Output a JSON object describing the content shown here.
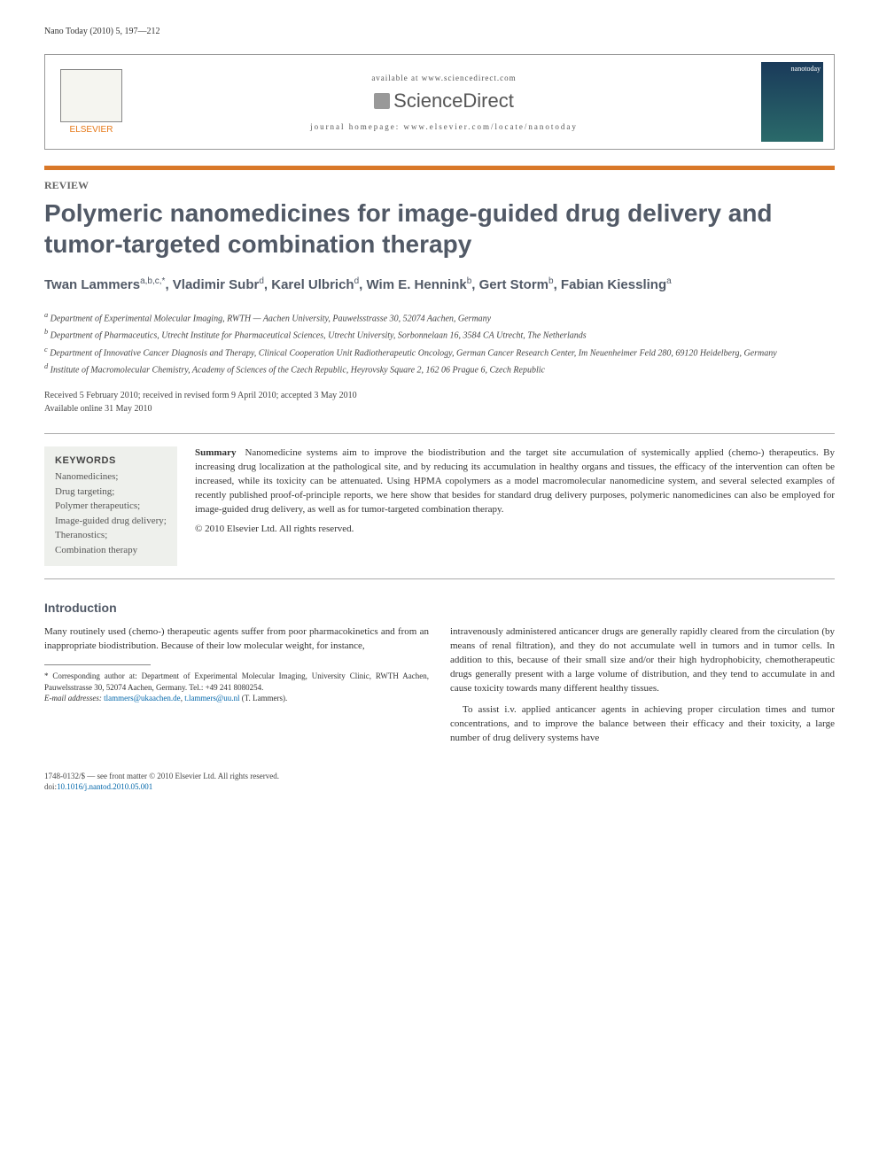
{
  "header": {
    "citation": "Nano Today (2010) 5, 197—212",
    "available_at": "available at www.sciencedirect.com",
    "sciencedirect": "ScienceDirect",
    "homepage_label": "journal homepage:",
    "homepage_url": "www.elsevier.com/locate/nanotoday",
    "elsevier_text": "ELSEVIER",
    "cover_label": "nanotoday"
  },
  "article": {
    "type": "REVIEW",
    "title": "Polymeric nanomedicines for image-guided drug delivery and tumor-targeted combination therapy"
  },
  "authors": [
    {
      "name": "Twan Lammers",
      "sup": "a,b,c,*"
    },
    {
      "name": "Vladimir Subr",
      "sup": "d"
    },
    {
      "name": "Karel Ulbrich",
      "sup": "d"
    },
    {
      "name": "Wim E. Hennink",
      "sup": "b"
    },
    {
      "name": "Gert Storm",
      "sup": "b"
    },
    {
      "name": "Fabian Kiessling",
      "sup": "a"
    }
  ],
  "affiliations": {
    "a": "Department of Experimental Molecular Imaging, RWTH — Aachen University, Pauwelsstrasse 30, 52074 Aachen, Germany",
    "b": "Department of Pharmaceutics, Utrecht Institute for Pharmaceutical Sciences, Utrecht University, Sorbonnelaan 16, 3584 CA Utrecht, The Netherlands",
    "c": "Department of Innovative Cancer Diagnosis and Therapy, Clinical Cooperation Unit Radiotherapeutic Oncology, German Cancer Research Center, Im Neuenheimer Feld 280, 69120 Heidelberg, Germany",
    "d": "Institute of Macromolecular Chemistry, Academy of Sciences of the Czech Republic, Heyrovsky Square 2, 162 06 Prague 6, Czech Republic"
  },
  "dates": {
    "received": "Received 5 February 2010; received in revised form 9 April 2010; accepted 3 May 2010",
    "online": "Available online 31 May 2010"
  },
  "keywords": {
    "label": "KEYWORDS",
    "items": "Nanomedicines;\nDrug targeting;\nPolymer therapeutics;\nImage-guided drug delivery;\nTheranostics;\nCombination therapy"
  },
  "summary": {
    "label": "Summary",
    "text": "Nanomedicine systems aim to improve the biodistribution and the target site accumulation of systemically applied (chemo-) therapeutics. By increasing drug localization at the pathological site, and by reducing its accumulation in healthy organs and tissues, the efficacy of the intervention can often be increased, while its toxicity can be attenuated. Using HPMA copolymers as a model macromolecular nanomedicine system, and several selected examples of recently published proof-of-principle reports, we here show that besides for standard drug delivery purposes, polymeric nanomedicines can also be employed for image-guided drug delivery, as well as for tumor-targeted combination therapy.",
    "copyright": "© 2010 Elsevier Ltd. All rights reserved."
  },
  "intro": {
    "heading": "Introduction",
    "col1_p1": "Many routinely used (chemo-) therapeutic agents suffer from poor pharmacokinetics and from an inappropriate biodistribution. Because of their low molecular weight, for instance,",
    "col2_p1": "intravenously administered anticancer drugs are generally rapidly cleared from the circulation (by means of renal filtration), and they do not accumulate well in tumors and in tumor cells. In addition to this, because of their small size and/or their high hydrophobicity, chemotherapeutic drugs generally present with a large volume of distribution, and they tend to accumulate in and cause toxicity towards many different healthy tissues.",
    "col2_p2": "To assist i.v. applied anticancer agents in achieving proper circulation times and tumor concentrations, and to improve the balance between their efficacy and their toxicity, a large number of drug delivery systems have"
  },
  "footnote": {
    "corresponding": "* Corresponding author at: Department of Experimental Molecular Imaging, University Clinic, RWTH Aachen, Pauwelsstrasse 30, 52074 Aachen, Germany. Tel.: +49 241 8080254.",
    "email_label": "E-mail addresses:",
    "email1": "tlammers@ukaachen.de",
    "email2": "t.lammers@uu.nl",
    "email_tail": "(T. Lammers)."
  },
  "footer": {
    "issn": "1748-0132/$ — see front matter © 2010 Elsevier Ltd. All rights reserved.",
    "doi_label": "doi:",
    "doi": "10.1016/j.nantod.2010.05.001"
  },
  "colors": {
    "orange_bar": "#d97828",
    "title_gray": "#515966",
    "link_blue": "#0066aa",
    "keywords_bg": "#eef0ec",
    "elsevier_orange": "#e67817"
  }
}
